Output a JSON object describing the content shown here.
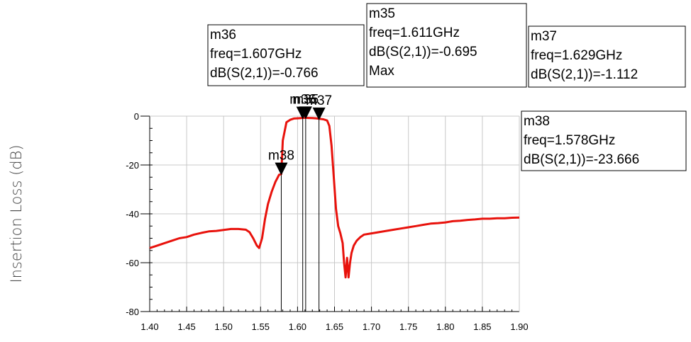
{
  "chart_data": {
    "type": "line",
    "title": "",
    "xlabel": "",
    "ylabel": "Insertion Loss (dB)",
    "xlim": [
      1.4,
      1.9
    ],
    "ylim": [
      -80,
      0
    ],
    "x_ticks": [
      "1.40",
      "1.45",
      "1.50",
      "1.55",
      "1.60",
      "1.65",
      "1.70",
      "1.75",
      "1.80",
      "1.85",
      "1.90"
    ],
    "y_ticks": [
      "0",
      "-20",
      "-40",
      "-60",
      "-80"
    ],
    "grid": true,
    "series": [
      {
        "color": "#e8120c",
        "x": [
          1.4,
          1.41,
          1.42,
          1.43,
          1.44,
          1.45,
          1.46,
          1.47,
          1.48,
          1.49,
          1.5,
          1.51,
          1.52,
          1.53,
          1.535,
          1.54,
          1.545,
          1.548,
          1.552,
          1.556,
          1.56,
          1.565,
          1.57,
          1.575,
          1.578,
          1.58,
          1.585,
          1.59,
          1.595,
          1.6,
          1.605,
          1.61,
          1.615,
          1.62,
          1.625,
          1.63,
          1.635,
          1.64,
          1.643,
          1.646,
          1.649,
          1.652,
          1.655,
          1.658,
          1.661,
          1.663,
          1.665,
          1.667,
          1.669,
          1.671,
          1.673,
          1.676,
          1.68,
          1.685,
          1.69,
          1.7,
          1.71,
          1.72,
          1.73,
          1.74,
          1.75,
          1.76,
          1.77,
          1.78,
          1.79,
          1.8,
          1.81,
          1.82,
          1.83,
          1.84,
          1.85,
          1.86,
          1.87,
          1.88,
          1.89,
          1.9
        ],
        "y": [
          -54.0,
          -53.0,
          -52.0,
          -51.0,
          -50.0,
          -49.5,
          -48.5,
          -47.8,
          -47.2,
          -47.0,
          -46.6,
          -46.2,
          -46.2,
          -46.5,
          -47.5,
          -50.0,
          -53.0,
          -54.0,
          -50.0,
          -42.0,
          -36.0,
          -31.0,
          -27.0,
          -24.0,
          -23.7,
          -10.0,
          -2.5,
          -1.5,
          -1.0,
          -0.9,
          -0.77,
          -0.7,
          -0.75,
          -0.8,
          -0.9,
          -1.11,
          -1.3,
          -1.8,
          -4.0,
          -12.0,
          -25.0,
          -38.0,
          -45.0,
          -48.0,
          -52.0,
          -60.0,
          -66.0,
          -58.0,
          -66.0,
          -60.0,
          -56.0,
          -53.0,
          -51.0,
          -49.5,
          -48.5,
          -48.0,
          -47.5,
          -47.0,
          -46.5,
          -46.0,
          -45.5,
          -45.0,
          -44.5,
          -44.0,
          -43.8,
          -43.5,
          -43.0,
          -42.8,
          -42.5,
          -42.3,
          -42.0,
          -42.0,
          -41.8,
          -41.8,
          -41.6,
          -41.5
        ]
      }
    ],
    "markers": [
      {
        "name": "m35",
        "x": 1.611,
        "y": -0.695,
        "freq_line": "freq=1.611GHz",
        "db_line": "dB(S(2,1))=-0.695",
        "extra_line": "Max"
      },
      {
        "name": "m36",
        "x": 1.607,
        "y": -0.766,
        "freq_line": "freq=1.607GHz",
        "db_line": "dB(S(2,1))=-0.766"
      },
      {
        "name": "m37",
        "x": 1.629,
        "y": -1.112,
        "freq_line": "freq=1.629GHz",
        "db_line": "dB(S(2,1))=-1.112"
      },
      {
        "name": "m38",
        "x": 1.578,
        "y": -23.666,
        "freq_line": "freq=1.578GHz",
        "db_line": "dB(S(2,1))=-23.666"
      }
    ],
    "legend": "none"
  }
}
